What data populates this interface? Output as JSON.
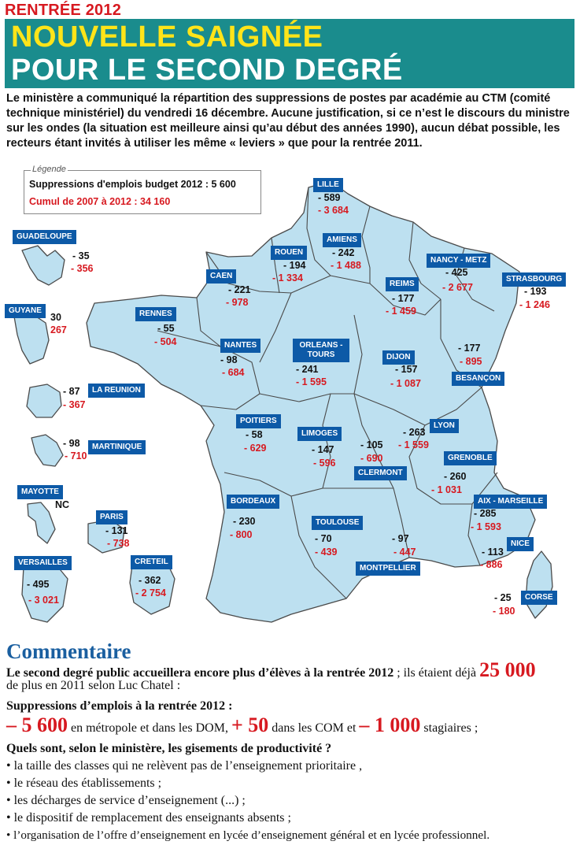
{
  "header": {
    "kicker": "RENTRÉE 2012",
    "title_line1": "NOUVELLE SAIGNÉE",
    "title_line2": "POUR LE SECOND DEGRÉ"
  },
  "intro": "Le ministère a communiqué la répartition des suppressions de postes par académie au CTM (comité technique ministériel) du vendredi 16 décembre. Aucune justification, si ce n’est le discours du ministre sur les ondes (la situation est meilleure ainsi qu’au début des années 1990), aucun débat possible, les recteurs étant invités à utiliser les même « leviers » que pour la rentrée 2011.",
  "legend": {
    "title": "Légende",
    "line1": "Suppressions d'emplois budget 2012 : 5 600",
    "line2": "Cumul de 2007 à 2012 : 34 160"
  },
  "colors": {
    "region_fill": "#bde0f0",
    "region_stroke": "#4a4a4a",
    "label_bg": "#0d5aa7",
    "accent_red": "#d71920",
    "banner": "#1a8c8d",
    "title_yellow": "#ffe419"
  },
  "academies": [
    {
      "name": "LILLE",
      "v2012": "- 589",
      "cumul": "- 3 684"
    },
    {
      "name": "ROUEN",
      "v2012": "- 194",
      "cumul": "- 1 334"
    },
    {
      "name": "AMIENS",
      "v2012": "- 242",
      "cumul": "- 1 488"
    },
    {
      "name": "NANCY - METZ",
      "v2012": "- 425",
      "cumul": "- 2 677"
    },
    {
      "name": "STRASBOURG",
      "v2012": "- 193",
      "cumul": "- 1 246"
    },
    {
      "name": "CAEN",
      "v2012": "- 221",
      "cumul": "- 978"
    },
    {
      "name": "REIMS",
      "v2012": "- 177",
      "cumul": "- 1 459"
    },
    {
      "name": "RENNES",
      "v2012": "- 55",
      "cumul": "- 504"
    },
    {
      "name": "NANTES",
      "v2012": "- 98",
      "cumul": "- 684"
    },
    {
      "name": "ORLEANS - TOURS",
      "v2012": "- 241",
      "cumul": "- 1 595"
    },
    {
      "name": "DIJON",
      "v2012": "- 157",
      "cumul": "- 1 087"
    },
    {
      "name": "BESANÇON",
      "v2012": "- 177",
      "cumul": "- 895"
    },
    {
      "name": "POITIERS",
      "v2012": "- 58",
      "cumul": "- 629"
    },
    {
      "name": "LIMOGES",
      "v2012": "- 147",
      "cumul": "- 596"
    },
    {
      "name": "CLERMONT",
      "v2012": "- 105",
      "cumul": "- 690"
    },
    {
      "name": "LYON",
      "v2012": "- 263",
      "cumul": "- 1 559"
    },
    {
      "name": "GRENOBLE",
      "v2012": "- 260",
      "cumul": "- 1 031"
    },
    {
      "name": "BORDEAUX",
      "v2012": "- 230",
      "cumul": "- 800"
    },
    {
      "name": "TOULOUSE",
      "v2012": "- 70",
      "cumul": "- 439"
    },
    {
      "name": "MONTPELLIER",
      "v2012": "- 97",
      "cumul": "- 447"
    },
    {
      "name": "AIX - MARSEILLE",
      "v2012": "- 285",
      "cumul": "- 1 593"
    },
    {
      "name": "NICE",
      "v2012": "- 113",
      "cumul": "- 886"
    },
    {
      "name": "CORSE",
      "v2012": "- 25",
      "cumul": "- 180"
    },
    {
      "name": "GUADELOUPE",
      "v2012": "- 35",
      "cumul": "- 356"
    },
    {
      "name": "GUYANE",
      "v2012": "30",
      "cumul": "267"
    },
    {
      "name": "LA REUNION",
      "v2012": "- 87",
      "cumul": "- 367"
    },
    {
      "name": "MARTINIQUE",
      "v2012": "- 98",
      "cumul": "- 710"
    },
    {
      "name": "MAYOTTE",
      "v2012": "NC",
      "cumul": ""
    },
    {
      "name": "PARIS",
      "v2012": "- 131",
      "cumul": "- 738"
    },
    {
      "name": "VERSAILLES",
      "v2012": "- 495",
      "cumul": "- 3 021"
    },
    {
      "name": "CRETEIL",
      "v2012": "- 362",
      "cumul": "- 2 754"
    }
  ],
  "commentary": {
    "title": "Commentaire",
    "p1_bold": "Le second degré public accueillera encore plus d’élèves à la rentrée 2012",
    "p1_rest": " ; ils étaient déjà ",
    "p1_big": "25 000",
    "p1_line2": "de plus en 2011 selon Luc Chatel :",
    "h2": "Suppressions d’emplois à la rentrée 2012 :",
    "n1": "– 5 600",
    "t1": " en métropole et dans les DOM, ",
    "n2": "+ 50",
    "t2": " dans les COM et ",
    "n3": "– 1 000",
    "t3": " stagiaires ;",
    "h3": "Quels sont, selon le ministère, les gisements de productivité ?",
    "bullets": [
      "• la taille des classes qui ne relèvent pas de l’enseignement prioritaire ,",
      "• le réseau des établissements ;",
      "• les décharges de service d’enseignement (...) ;",
      "• le dispositif de remplacement des enseignants absents ;",
      "• l’organisation de l’offre d’enseignement en lycée d’enseignement général et en lycée professionnel."
    ]
  }
}
